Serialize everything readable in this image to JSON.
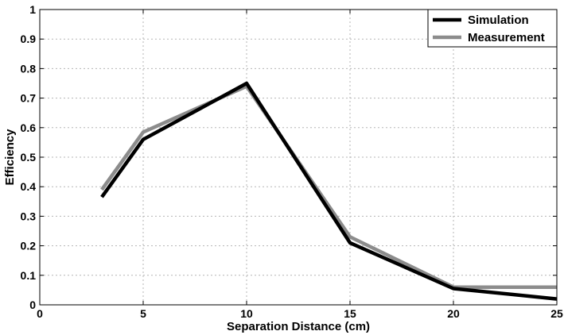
{
  "chart_data": {
    "type": "line",
    "xlabel": "Separation Distance (cm)",
    "ylabel": "Efficiency",
    "xlim": [
      0,
      25
    ],
    "ylim": [
      0,
      1
    ],
    "xticks": [
      0,
      5,
      10,
      15,
      20,
      25
    ],
    "yticks": [
      0,
      0.1,
      0.2,
      0.3,
      0.4,
      0.5,
      0.6,
      0.7,
      0.8,
      0.9,
      1
    ],
    "xtick_labels": [
      "0",
      "5",
      "10",
      "15",
      "20",
      "25"
    ],
    "ytick_labels": [
      "0",
      "0.1",
      "0.2",
      "0.3",
      "0.4",
      "0.5",
      "0.6",
      "0.7",
      "0.8",
      "0.9",
      "1"
    ],
    "grid": true,
    "legend_position": "top-right",
    "series": [
      {
        "name": "Simulation",
        "color": "#000000",
        "x": [
          3,
          5,
          10,
          15,
          20,
          25
        ],
        "y": [
          0.365,
          0.56,
          0.75,
          0.21,
          0.055,
          0.02
        ]
      },
      {
        "name": "Measurement",
        "color": "#8c8c8c",
        "x": [
          3,
          5,
          10,
          15,
          20,
          25
        ],
        "y": [
          0.39,
          0.585,
          0.74,
          0.23,
          0.06,
          0.06
        ]
      }
    ]
  }
}
